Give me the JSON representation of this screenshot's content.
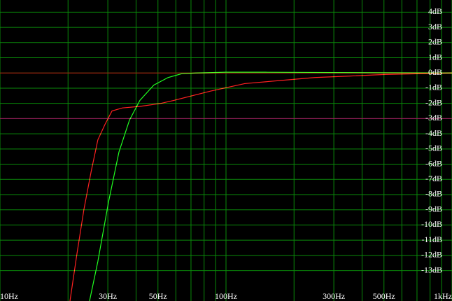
{
  "chart_data": {
    "type": "line",
    "xscale": "log",
    "xlim": [
      10,
      1000
    ],
    "ylim": [
      -15,
      4.8
    ],
    "grid": true,
    "grid_color": "#0a8a0a",
    "xgrid": [
      10,
      20,
      30,
      40,
      50,
      60,
      70,
      80,
      90,
      100,
      200,
      300,
      400,
      500,
      600,
      700,
      800,
      900,
      1000
    ],
    "xticks": [
      {
        "value": 10,
        "label": "10Hz"
      },
      {
        "value": 30,
        "label": "30Hz"
      },
      {
        "value": 50,
        "label": "50Hz"
      },
      {
        "value": 100,
        "label": "100Hz"
      },
      {
        "value": 300,
        "label": "300Hz"
      },
      {
        "value": 500,
        "label": "500Hz"
      },
      {
        "value": 1000,
        "label": "1kHz"
      }
    ],
    "yticks": [
      {
        "value": 4,
        "label": "4dB"
      },
      {
        "value": 3,
        "label": "3dB"
      },
      {
        "value": 2,
        "label": "2dB"
      },
      {
        "value": 1,
        "label": "1dB"
      },
      {
        "value": 0,
        "label": "0dB"
      },
      {
        "value": -1,
        "label": "-1dB"
      },
      {
        "value": -2,
        "label": "-2dB"
      },
      {
        "value": -3,
        "label": "-3dB"
      },
      {
        "value": -4,
        "label": "-4dB"
      },
      {
        "value": -5,
        "label": "-5dB"
      },
      {
        "value": -6,
        "label": "-6dB"
      },
      {
        "value": -7,
        "label": "-7dB"
      },
      {
        "value": -8,
        "label": "-8dB"
      },
      {
        "value": -9,
        "label": "-9dB"
      },
      {
        "value": -10,
        "label": "-10dB"
      },
      {
        "value": -11,
        "label": "-11dB"
      },
      {
        "value": -12,
        "label": "-12dB"
      },
      {
        "value": -13,
        "label": "-13dB"
      }
    ],
    "reference_lines": [
      {
        "value": 0,
        "color": "#c01010"
      },
      {
        "value": -3,
        "color": "#a01060"
      }
    ],
    "series": [
      {
        "color": "#ff2020",
        "x": [
          20.4,
          21.9,
          23.5,
          25.3,
          27.1,
          29.1,
          31.3,
          34.8,
          41.6,
          51.5,
          59,
          85,
          121,
          172,
          247,
          354,
          505,
          1000
        ],
        "values": [
          -15,
          -11.9,
          -9.0,
          -6.5,
          -4.4,
          -3.4,
          -2.5,
          -2.3,
          -2.2,
          -2.0,
          -1.8,
          -1.2,
          -0.7,
          -0.5,
          -0.3,
          -0.2,
          -0.1,
          0
        ]
      },
      {
        "color": "#20ff20",
        "x": [
          24.9,
          27.1,
          30.2,
          33.6,
          37.4,
          41.6,
          47.9,
          55.4,
          63.7,
          73.6,
          100,
          150,
          1000
        ],
        "values": [
          -15,
          -12.4,
          -8.5,
          -5.2,
          -3.1,
          -1.8,
          -0.8,
          -0.3,
          -0.05,
          0,
          0.05,
          0.05,
          0
        ]
      }
    ]
  }
}
